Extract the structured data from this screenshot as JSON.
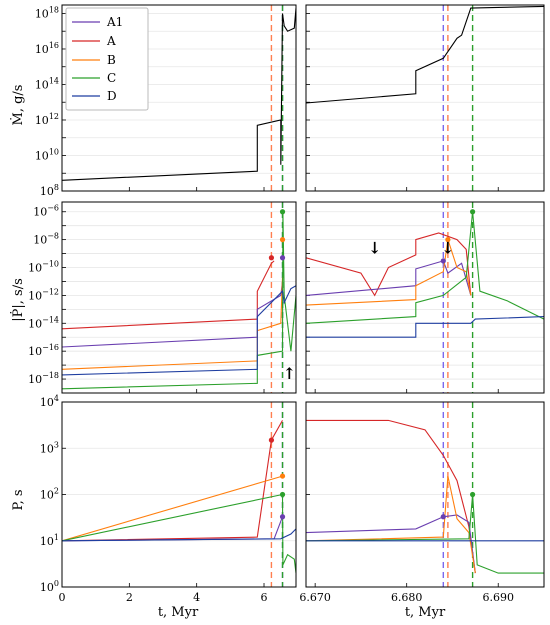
{
  "figure": {
    "legend": [
      {
        "name": "A1",
        "color": "#6a3fb0"
      },
      {
        "name": "A",
        "color": "#d62728"
      },
      {
        "name": "B",
        "color": "#ff7f0e"
      },
      {
        "name": "C",
        "color": "#2ca02c"
      },
      {
        "name": "D",
        "color": "#1f3ea0"
      }
    ],
    "xlabel_left": "t, Myr",
    "xlabel_right": "t, Myr",
    "ylabels": [
      "Ṁ, g/s",
      "|Ṗ|, s/s",
      "P, s"
    ]
  },
  "chart_data": [
    {
      "type": "line",
      "panel": "Mdot-left",
      "yscale": "log",
      "xlim": [
        0,
        6.95
      ],
      "ylim": [
        100000000.0,
        3e+18
      ],
      "xticks": [
        0,
        2,
        4,
        6
      ],
      "xtick_labels": [],
      "yticks": [
        "10^8",
        "10^10",
        "10^12",
        "10^14",
        "10^16",
        "10^18"
      ],
      "vlines": [
        {
          "x": 6.22,
          "color": "#ff7f50"
        },
        {
          "x": 6.55,
          "color": "#7b68ee"
        },
        {
          "x": 6.55,
          "color": "#2ca02c"
        }
      ],
      "series": [
        {
          "color": "#000000",
          "points": [
            [
              0,
              400000000.0
            ],
            [
              5.8,
              1300000000.0
            ],
            [
              5.8,
              500000000000.0
            ],
            [
              6.5,
              1000000000000.0
            ],
            [
              6.5,
              3000000000.0
            ],
            [
              6.55,
              1e+18
            ],
            [
              6.6,
              2e+17
            ],
            [
              6.7,
              1e+17
            ],
            [
              6.9,
              1.5e+17
            ],
            [
              6.95,
              2e+18
            ]
          ]
        }
      ]
    },
    {
      "type": "line",
      "panel": "Mdot-right",
      "yscale": "log",
      "xlim": [
        6.669,
        6.695
      ],
      "ylim": [
        100000000.0,
        3e+18
      ],
      "xticks": [
        6.67,
        6.68,
        6.69
      ],
      "xtick_labels": [],
      "yticks": [],
      "vlines": [
        {
          "x": 6.684,
          "color": "#7b68ee"
        },
        {
          "x": 6.6845,
          "color": "#ff7f50"
        },
        {
          "x": 6.6872,
          "color": "#2ca02c"
        }
      ],
      "series": [
        {
          "color": "#000000",
          "points": [
            [
              6.669,
              9000000000000.0
            ],
            [
              6.681,
              30000000000000.0
            ],
            [
              6.681,
              600000000000000.0
            ],
            [
              6.684,
              3000000000000000.0
            ],
            [
              6.6855,
              4e+16
            ],
            [
              6.686,
              6e+16
            ],
            [
              6.687,
              2e+18
            ],
            [
              6.695,
              2.5e+18
            ]
          ]
        }
      ]
    },
    {
      "type": "line",
      "panel": "Pdot-left",
      "yscale": "log",
      "xlim": [
        0,
        6.95
      ],
      "ylim": [
        1e-19,
        5e-06
      ],
      "xticks": [
        0,
        2,
        4,
        6
      ],
      "xtick_labels": [],
      "yticks": [
        "10^-18",
        "10^-16",
        "10^-14",
        "10^-12",
        "10^-10",
        "10^-8",
        "10^-6"
      ],
      "vlines": [
        {
          "x": 6.22,
          "color": "#ff7f50"
        },
        {
          "x": 6.55,
          "color": "#7b68ee"
        },
        {
          "x": 6.55,
          "color": "#2ca02c"
        }
      ],
      "series": [
        {
          "name": "A",
          "color": "#d62728",
          "points": [
            [
              0,
              4e-15
            ],
            [
              5.8,
              2e-14
            ],
            [
              5.8,
              2e-12
            ],
            [
              6.22,
              2e-10
            ],
            [
              6.3,
              3e-10
            ]
          ]
        },
        {
          "name": "A1",
          "color": "#6a3fb0",
          "points": [
            [
              0,
              2e-16
            ],
            [
              5.8,
              1e-15
            ],
            [
              5.8,
              1e-13
            ],
            [
              6.5,
              1e-12
            ],
            [
              6.55,
              1e-11
            ]
          ]
        },
        {
          "name": "B",
          "color": "#ff7f0e",
          "points": [
            [
              0,
              5e-18
            ],
            [
              5.8,
              2e-17
            ],
            [
              5.8,
              3e-15
            ],
            [
              6.5,
              1e-14
            ],
            [
              6.55,
              2e-11
            ]
          ]
        },
        {
          "name": "C",
          "color": "#2ca02c",
          "points": [
            [
              0,
              2e-19
            ],
            [
              5.8,
              5e-19
            ],
            [
              5.8,
              5e-17
            ],
            [
              6.55,
              1e-16
            ],
            [
              6.56,
              1e-06
            ],
            [
              6.6,
              1e-12
            ],
            [
              6.8,
              1e-16
            ],
            [
              6.95,
              1e-12
            ]
          ]
        },
        {
          "name": "D",
          "color": "#1f3ea0",
          "points": [
            [
              0,
              2e-18
            ],
            [
              5.8,
              5e-18
            ],
            [
              5.8,
              3e-14
            ],
            [
              6.55,
              2e-12
            ],
            [
              6.6,
              3e-13
            ],
            [
              6.8,
              3e-12
            ],
            [
              6.95,
              5e-12
            ]
          ]
        }
      ],
      "markers": [
        {
          "x": 6.22,
          "y": 5e-10,
          "color": "#d62728"
        },
        {
          "x": 6.55,
          "y": 5e-10,
          "color": "#6a3fb0"
        },
        {
          "x": 6.55,
          "y": 1e-06,
          "color": "#2ca02c"
        },
        {
          "x": 6.55,
          "y": 1e-08,
          "color": "#ff7f0e"
        }
      ],
      "annotations": [
        {
          "text": "↑",
          "x": 6.75,
          "y": 1e-18
        }
      ]
    },
    {
      "type": "line",
      "panel": "Pdot-right",
      "yscale": "log",
      "xlim": [
        6.669,
        6.695
      ],
      "ylim": [
        1e-19,
        5e-06
      ],
      "xticks": [
        6.67,
        6.68,
        6.69
      ],
      "xtick_labels": [],
      "yticks": [],
      "vlines": [
        {
          "x": 6.684,
          "color": "#7b68ee"
        },
        {
          "x": 6.6845,
          "color": "#ff7f50"
        },
        {
          "x": 6.6872,
          "color": "#2ca02c"
        }
      ],
      "series": [
        {
          "name": "A",
          "color": "#d62728",
          "points": [
            [
              6.669,
              5e-10
            ],
            [
              6.675,
              4e-11
            ],
            [
              6.6765,
              1e-12
            ],
            [
              6.678,
              1e-10
            ],
            [
              6.681,
              8e-10
            ],
            [
              6.681,
              1e-08
            ],
            [
              6.6835,
              3e-08
            ],
            [
              6.6855,
              1e-08
            ],
            [
              6.6865,
              2e-09
            ],
            [
              6.687,
              1e-12
            ]
          ]
        },
        {
          "name": "A1",
          "color": "#6a3fb0",
          "points": [
            [
              6.669,
              1e-12
            ],
            [
              6.681,
              5e-12
            ],
            [
              6.681,
              8e-11
            ],
            [
              6.684,
              3e-10
            ],
            [
              6.6845,
              4e-11
            ],
            [
              6.686,
              2e-10
            ],
            [
              6.687,
              1e-12
            ]
          ]
        },
        {
          "name": "B",
          "color": "#ff7f0e",
          "points": [
            [
              6.669,
              2e-13
            ],
            [
              6.681,
              5e-13
            ],
            [
              6.681,
              5e-12
            ],
            [
              6.684,
              5e-11
            ],
            [
              6.6845,
              1e-08
            ],
            [
              6.6855,
              1e-10
            ],
            [
              6.6865,
              5e-11
            ],
            [
              6.687,
              1e-12
            ]
          ]
        },
        {
          "name": "C",
          "color": "#2ca02c",
          "points": [
            [
              6.669,
              1e-14
            ],
            [
              6.681,
              3e-14
            ],
            [
              6.681,
              3e-13
            ],
            [
              6.684,
              1e-12
            ],
            [
              6.6865,
              2e-11
            ],
            [
              6.6872,
              1e-06
            ],
            [
              6.688,
              2e-12
            ],
            [
              6.691,
              4e-13
            ],
            [
              6.695,
              2e-14
            ]
          ]
        },
        {
          "name": "D",
          "color": "#1f3ea0",
          "points": [
            [
              6.669,
              1e-15
            ],
            [
              6.681,
              1e-15
            ],
            [
              6.681,
              1e-14
            ],
            [
              6.687,
              1e-14
            ],
            [
              6.6875,
              2e-14
            ],
            [
              6.695,
              3e-14
            ]
          ]
        }
      ],
      "markers": [
        {
          "x": 6.684,
          "y": 3e-10,
          "color": "#6a3fb0"
        },
        {
          "x": 6.6845,
          "y": 1e-08,
          "color": "#ff7f0e"
        },
        {
          "x": 6.6872,
          "y": 1e-06,
          "color": "#2ca02c"
        }
      ],
      "annotations": [
        {
          "text": "↓",
          "x": 6.6765,
          "y": 1e-09
        },
        {
          "text": "↓",
          "x": 6.6845,
          "y": 1e-09
        }
      ]
    },
    {
      "type": "line",
      "panel": "P-left",
      "yscale": "log",
      "xlim": [
        0,
        6.95
      ],
      "ylim": [
        1,
        10000.0
      ],
      "xticks": [
        0,
        2,
        4,
        6
      ],
      "xtick_labels": [
        "0",
        "2",
        "4",
        "6"
      ],
      "yticks": [
        "10^0",
        "10^1",
        "10^2",
        "10^3",
        "10^4"
      ],
      "vlines": [
        {
          "x": 6.22,
          "color": "#ff7f50"
        },
        {
          "x": 6.55,
          "color": "#7b68ee"
        },
        {
          "x": 6.55,
          "color": "#2ca02c"
        }
      ],
      "series": [
        {
          "name": "A",
          "color": "#d62728",
          "points": [
            [
              0,
              10
            ],
            [
              5.8,
              12
            ],
            [
              6.22,
              1500
            ],
            [
              6.55,
              4000
            ]
          ]
        },
        {
          "name": "A1",
          "color": "#6a3fb0",
          "points": [
            [
              0,
              10
            ],
            [
              6.3,
              11
            ],
            [
              6.55,
              33
            ]
          ]
        },
        {
          "name": "B",
          "color": "#ff7f0e",
          "points": [
            [
              0,
              10
            ],
            [
              6.55,
              250
            ]
          ]
        },
        {
          "name": "C",
          "color": "#2ca02c",
          "points": [
            [
              0,
              10
            ],
            [
              6.55,
              100
            ],
            [
              6.56,
              3
            ],
            [
              6.7,
              5
            ],
            [
              6.9,
              4
            ],
            [
              6.95,
              2
            ]
          ]
        },
        {
          "name": "D",
          "color": "#1f3ea0",
          "points": [
            [
              0,
              10
            ],
            [
              6.5,
              11
            ],
            [
              6.8,
              14
            ],
            [
              6.95,
              18
            ]
          ]
        }
      ],
      "markers": [
        {
          "x": 6.22,
          "y": 1500,
          "color": "#d62728"
        },
        {
          "x": 6.55,
          "y": 250,
          "color": "#ff7f0e"
        },
        {
          "x": 6.55,
          "y": 100,
          "color": "#2ca02c"
        },
        {
          "x": 6.55,
          "y": 33,
          "color": "#6a3fb0"
        }
      ]
    },
    {
      "type": "line",
      "panel": "P-right",
      "yscale": "log",
      "xlim": [
        6.669,
        6.695
      ],
      "ylim": [
        1,
        10000.0
      ],
      "xticks": [
        6.67,
        6.68,
        6.69
      ],
      "xtick_labels": [
        "6.670",
        "6.680",
        "6.690"
      ],
      "yticks": [],
      "vlines": [
        {
          "x": 6.684,
          "color": "#7b68ee"
        },
        {
          "x": 6.6845,
          "color": "#ff7f50"
        },
        {
          "x": 6.6872,
          "color": "#2ca02c"
        }
      ],
      "series": [
        {
          "name": "A",
          "color": "#d62728",
          "points": [
            [
              6.669,
              4000
            ],
            [
              6.678,
              4000
            ],
            [
              6.682,
              2500
            ],
            [
              6.684,
              700
            ],
            [
              6.6855,
              200
            ],
            [
              6.6868,
              20
            ],
            [
              6.6875,
              2
            ]
          ]
        },
        {
          "name": "A1",
          "color": "#6a3fb0",
          "points": [
            [
              6.669,
              15
            ],
            [
              6.681,
              18
            ],
            [
              6.684,
              33
            ],
            [
              6.6855,
              36
            ],
            [
              6.6868,
              25
            ],
            [
              6.6875,
              2
            ]
          ]
        },
        {
          "name": "B",
          "color": "#ff7f0e",
          "points": [
            [
              6.669,
              10
            ],
            [
              6.684,
              12
            ],
            [
              6.6845,
              250
            ],
            [
              6.6855,
              30
            ],
            [
              6.6868,
              15
            ],
            [
              6.6875,
              2
            ]
          ]
        },
        {
          "name": "C",
          "color": "#2ca02c",
          "points": [
            [
              6.669,
              10
            ],
            [
              6.6868,
              11
            ],
            [
              6.6872,
              100
            ],
            [
              6.6877,
              3
            ],
            [
              6.69,
              2
            ],
            [
              6.695,
              2
            ]
          ]
        },
        {
          "name": "D",
          "color": "#1f3ea0",
          "points": [
            [
              6.669,
              10
            ],
            [
              6.6872,
              10
            ],
            [
              6.6878,
              10
            ],
            [
              6.695,
              10
            ]
          ]
        }
      ],
      "markers": [
        {
          "x": 6.684,
          "y": 33,
          "color": "#6a3fb0"
        },
        {
          "x": 6.6872,
          "y": 100,
          "color": "#2ca02c"
        }
      ]
    }
  ]
}
